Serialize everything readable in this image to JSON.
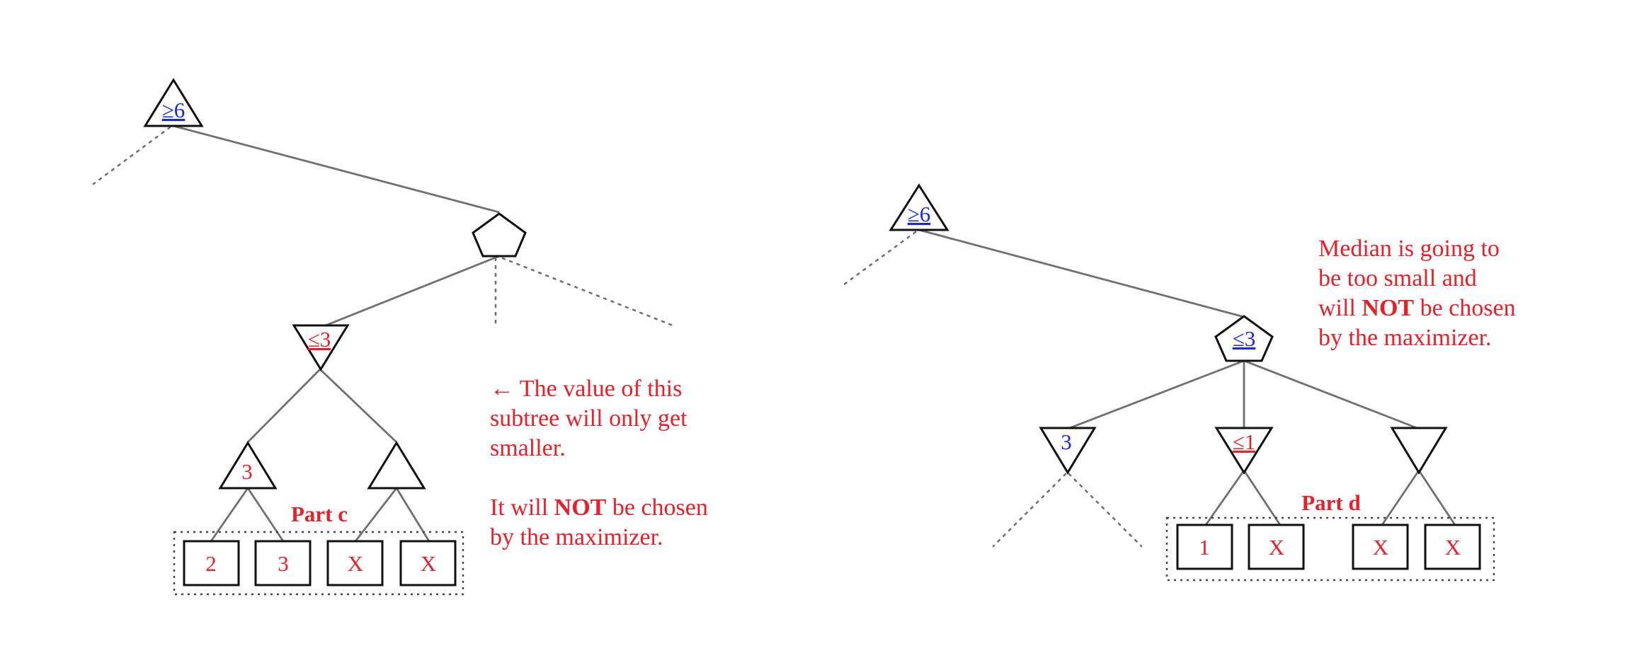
{
  "colors": {
    "red": "#e8202a",
    "blue": "#1a28e0",
    "line": "#707070",
    "outline": "#111111"
  },
  "left": {
    "root_label": "≥6",
    "chance_label": "",
    "min_label": "≤3",
    "max_left_label": "3",
    "max_right_label": "",
    "part_label": "Part c",
    "leaves": [
      "2",
      "3",
      "X",
      "X"
    ],
    "note_lines": [
      "← The value of this",
      "subtree will only get",
      "smaller.",
      "",
      "It will ",
      "NOT",
      " be chosen",
      "by the maximizer."
    ]
  },
  "right": {
    "root_label": "≥6",
    "chance_label": "≤3",
    "min_labels": [
      "3",
      "≤1",
      ""
    ],
    "part_label": "Part d",
    "leaves": [
      "1",
      "X",
      "X",
      "X"
    ],
    "note_lines": [
      "Median is going to",
      "be too small and",
      "will ",
      "NOT",
      " be chosen",
      "by the maximizer."
    ]
  }
}
